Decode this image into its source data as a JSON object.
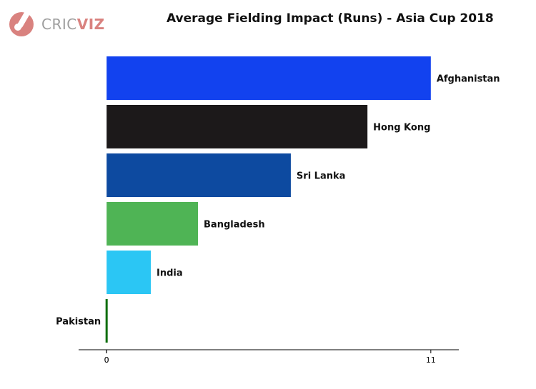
{
  "brand": {
    "prefix": "CRIC",
    "suffix": "VIZ"
  },
  "chart_data": {
    "type": "bar",
    "orientation": "horizontal",
    "title": "Average Fielding Impact (Runs) - Asia Cup 2018",
    "xlabel": "",
    "ylabel": "",
    "categories": [
      "Afghanistan",
      "Hong Kong",
      "Sri Lanka",
      "Bangladesh",
      "India",
      "Pakistan"
    ],
    "values": [
      11.0,
      8.85,
      6.25,
      3.1,
      1.5,
      0.0
    ],
    "colors": [
      "#1242ef",
      "#1c191a",
      "#0d4aa0",
      "#4fb455",
      "#2bc6f4",
      "#0d6e0b"
    ],
    "x_ticks": [
      "0",
      "0",
      "11"
    ],
    "x_tick_values": [
      0,
      0,
      11
    ],
    "xlim": [
      -0.95,
      11.95
    ],
    "grid": false,
    "legend": "none"
  }
}
